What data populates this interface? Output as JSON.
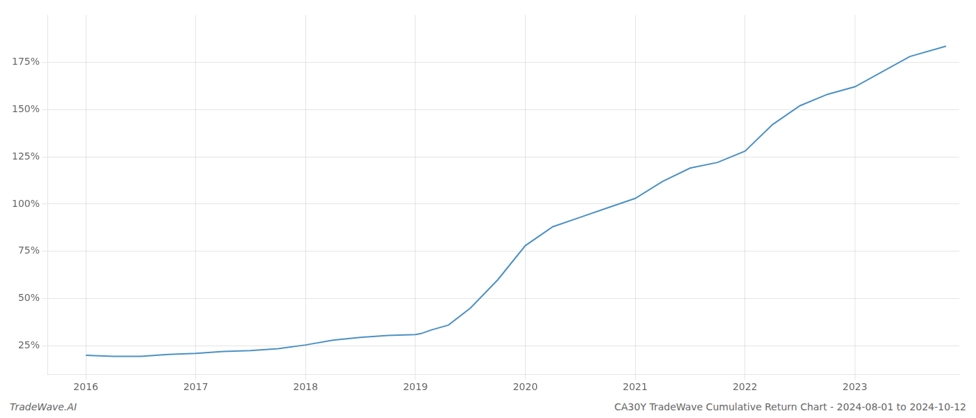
{
  "chart_data": {
    "type": "line",
    "title": "CA30Y TradeWave Cumulative Return Chart - 2024-08-01 to 2024-10-12",
    "annotations": [
      "TradeWave.AI"
    ],
    "x": [
      2016.0,
      2016.25,
      2016.5,
      2016.75,
      2017.0,
      2017.25,
      2017.5,
      2017.75,
      2018.0,
      2018.25,
      2018.5,
      2018.75,
      2019.0,
      2019.05,
      2019.15,
      2019.3,
      2019.5,
      2019.75,
      2020.0,
      2020.25,
      2020.5,
      2020.75,
      2021.0,
      2021.25,
      2021.5,
      2021.75,
      2022.0,
      2022.25,
      2022.5,
      2022.75,
      2023.0,
      2023.5,
      2023.83
    ],
    "values": [
      20.0,
      19.5,
      19.5,
      20.5,
      21.0,
      22.0,
      22.5,
      23.5,
      25.5,
      28.0,
      29.5,
      30.5,
      31.0,
      31.5,
      33.5,
      36.0,
      45.0,
      60.0,
      78.0,
      88.0,
      93.0,
      98.0,
      103.0,
      112.0,
      119.0,
      122.0,
      128.0,
      142.0,
      152.0,
      158.0,
      162.0,
      178.0,
      183.5
    ],
    "color": "#4a90c4",
    "xlim": [
      2015.65,
      2023.95
    ],
    "ylim": [
      10,
      200
    ],
    "xticks": [
      2016,
      2017,
      2018,
      2019,
      2020,
      2021,
      2022,
      2023
    ],
    "yticks": [
      {
        "value": 25,
        "label": "25%"
      },
      {
        "value": 50,
        "label": "50%"
      },
      {
        "value": 75,
        "label": "75%"
      },
      {
        "value": 100,
        "label": "100%"
      },
      {
        "value": 125,
        "label": "125%"
      },
      {
        "value": 150,
        "label": "150%"
      },
      {
        "value": 175,
        "label": "175%"
      }
    ],
    "grid": true
  }
}
